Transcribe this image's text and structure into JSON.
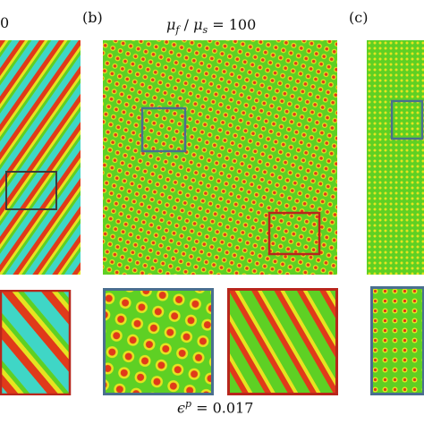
{
  "panels": [
    {
      "label": "",
      "title": "0"
    },
    {
      "label": "(b)",
      "title": "μ_f / μ_s = 100"
    },
    {
      "label": "(c)",
      "title": ""
    }
  ],
  "title_b": {
    "mu_f": "μ",
    "sub_f": "f",
    "slash": "/",
    "mu_s": "μ",
    "sub_s": "s",
    "eq": "= 100"
  },
  "caption": {
    "eps": "ϵ",
    "sup": "p",
    "eq": "= 0.017"
  },
  "colors": {
    "field_green": "#5ed024",
    "field_yellow": "#e6e420",
    "field_red": "#e03a1a",
    "field_cyan": "#3fd6c6",
    "box_blue": "#4a6f8f",
    "box_red": "#b8261c",
    "box_dark": "#3c3c3c"
  }
}
